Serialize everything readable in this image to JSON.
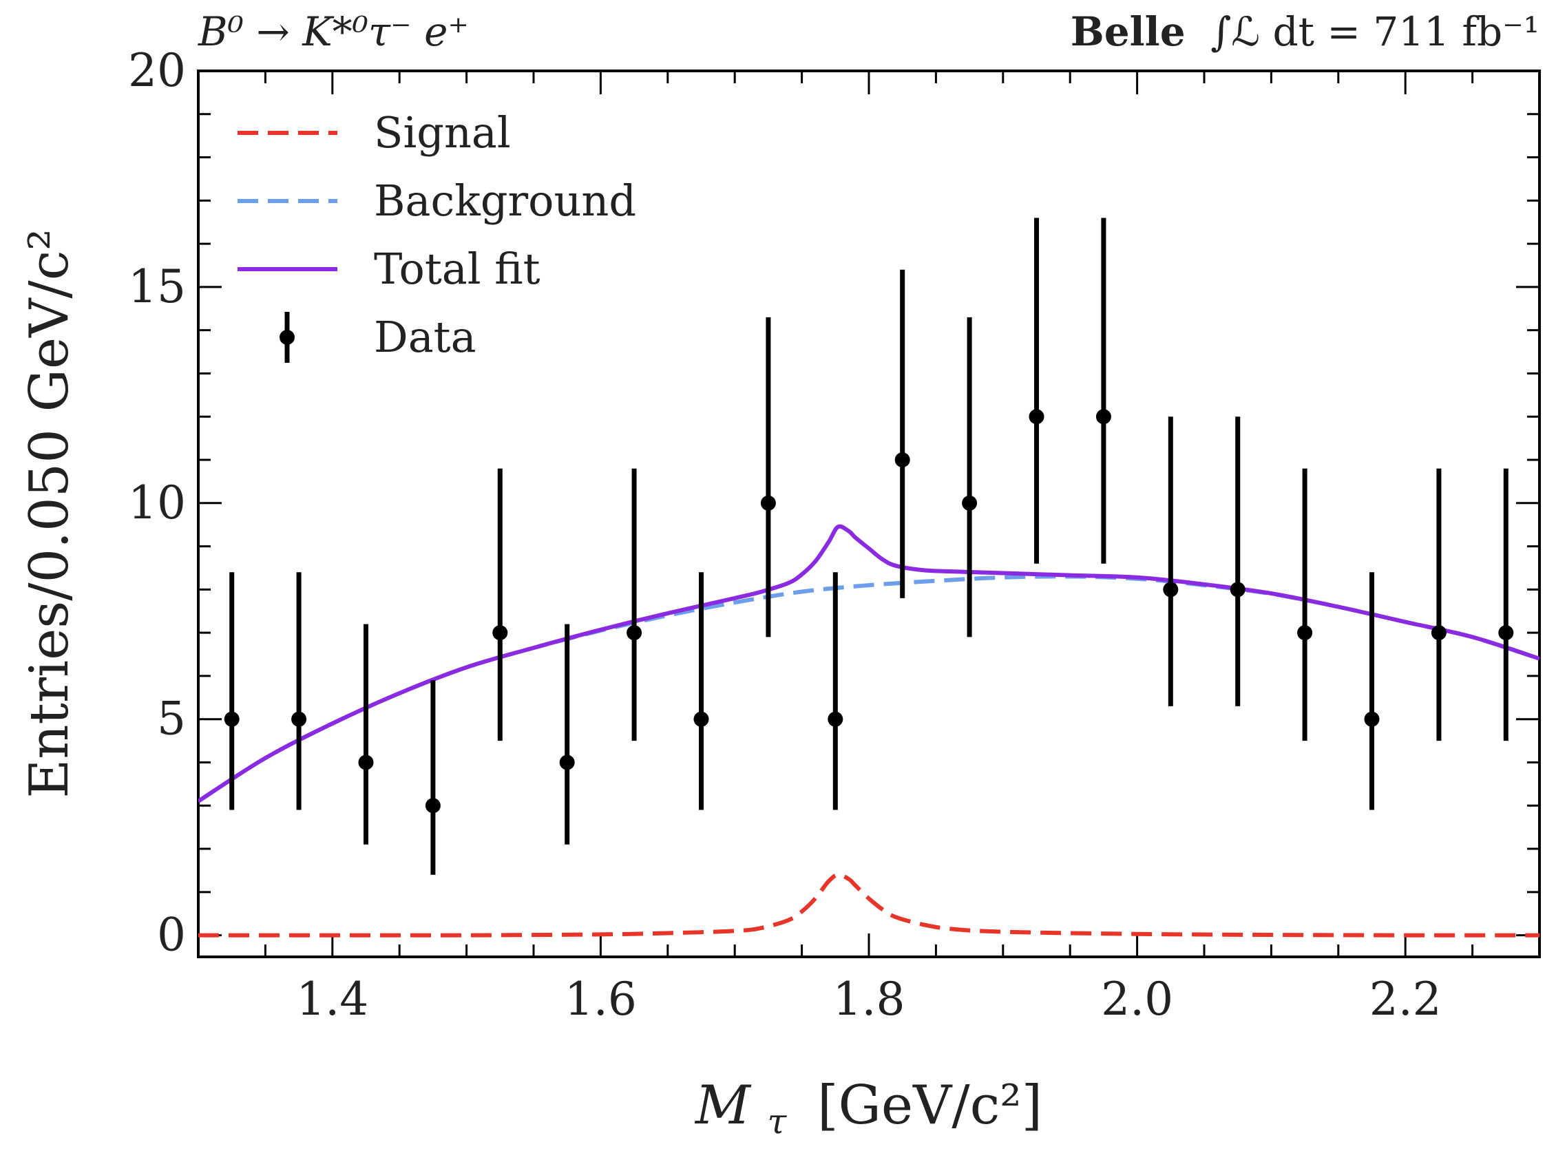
{
  "chart_data": {
    "type": "scatter",
    "title_left": "B⁰ → K*⁰τ⁻ e⁺",
    "title_right_bold": "Belle",
    "title_right": "∫ℒ dt = 711 fb⁻¹",
    "xlabel": "M",
    "xlabel_sub": "τ",
    "xlabel_unit": "[GeV/c²]",
    "ylabel": "Entries/0.050 GeV/c²",
    "xlim": [
      1.3,
      2.3
    ],
    "ylim": [
      -0.5,
      20
    ],
    "x_ticks": [
      1.4,
      1.6,
      1.8,
      2.0,
      2.2
    ],
    "x_tick_labels": [
      "1.4",
      "1.6",
      "1.8",
      "2.0",
      "2.2"
    ],
    "y_ticks": [
      0,
      5,
      10,
      15,
      20
    ],
    "y_tick_labels": [
      "0",
      "5",
      "10",
      "15",
      "20"
    ],
    "legend": {
      "position": "top-left",
      "items": [
        {
          "label": "Signal",
          "style": "dashed",
          "color": "#e8352a"
        },
        {
          "label": "Background",
          "style": "dashed",
          "color": "#6d9eeb"
        },
        {
          "label": "Total fit",
          "style": "solid",
          "color": "#8a2be2"
        },
        {
          "label": "Data",
          "style": "errorbar",
          "color": "#000000"
        }
      ]
    },
    "data_points": {
      "name": "Data",
      "x": [
        1.325,
        1.375,
        1.425,
        1.475,
        1.525,
        1.575,
        1.625,
        1.675,
        1.725,
        1.775,
        1.825,
        1.875,
        1.925,
        1.975,
        2.025,
        2.075,
        2.125,
        2.175,
        2.225,
        2.275
      ],
      "y": [
        5,
        5,
        4,
        3,
        7,
        4,
        7,
        5,
        10,
        5,
        11,
        10,
        12,
        12,
        8,
        8,
        7,
        5,
        7,
        7
      ],
      "err_low": [
        2.1,
        2.1,
        1.9,
        1.6,
        2.5,
        1.9,
        2.5,
        2.1,
        3.1,
        2.1,
        3.2,
        3.1,
        3.4,
        3.4,
        2.7,
        2.7,
        2.5,
        2.1,
        2.5,
        2.5
      ],
      "err_high": [
        3.4,
        3.4,
        3.2,
        2.9,
        3.8,
        3.2,
        3.8,
        3.4,
        4.3,
        3.4,
        4.4,
        4.3,
        4.6,
        4.6,
        4.0,
        4.0,
        3.8,
        3.4,
        3.8,
        3.8
      ]
    },
    "curves": [
      {
        "name": "Signal",
        "color": "#e8352a",
        "style": "dashed",
        "x": [
          1.3,
          1.4,
          1.5,
          1.6,
          1.65,
          1.7,
          1.72,
          1.74,
          1.75,
          1.76,
          1.77,
          1.777,
          1.785,
          1.79,
          1.8,
          1.81,
          1.82,
          1.84,
          1.86,
          1.9,
          2.0,
          2.1,
          2.2,
          2.3
        ],
        "y": [
          0,
          0,
          0,
          0.02,
          0.05,
          0.1,
          0.17,
          0.35,
          0.55,
          0.85,
          1.25,
          1.4,
          1.3,
          1.15,
          0.85,
          0.6,
          0.42,
          0.25,
          0.15,
          0.08,
          0.03,
          0.01,
          0,
          0
        ]
      },
      {
        "name": "Background",
        "color": "#6d9eeb",
        "style": "dashed",
        "x": [
          1.3,
          1.35,
          1.4,
          1.45,
          1.5,
          1.55,
          1.6,
          1.65,
          1.7,
          1.75,
          1.8,
          1.85,
          1.9,
          1.95,
          2.0,
          2.05,
          2.1,
          2.15,
          2.2,
          2.25,
          2.3
        ],
        "y": [
          3.1,
          4.1,
          4.9,
          5.6,
          6.2,
          6.65,
          7.05,
          7.4,
          7.7,
          7.95,
          8.1,
          8.2,
          8.28,
          8.3,
          8.25,
          8.1,
          7.9,
          7.6,
          7.25,
          6.9,
          6.4
        ]
      },
      {
        "name": "Total fit",
        "color": "#8a2be2",
        "style": "solid",
        "x": [
          1.3,
          1.35,
          1.4,
          1.45,
          1.5,
          1.55,
          1.6,
          1.65,
          1.7,
          1.72,
          1.74,
          1.75,
          1.76,
          1.77,
          1.777,
          1.785,
          1.79,
          1.8,
          1.81,
          1.82,
          1.84,
          1.86,
          1.9,
          1.95,
          2.0,
          2.05,
          2.1,
          2.15,
          2.2,
          2.25,
          2.3
        ],
        "y": [
          3.1,
          4.1,
          4.9,
          5.6,
          6.2,
          6.65,
          7.07,
          7.45,
          7.8,
          7.95,
          8.15,
          8.35,
          8.65,
          9.1,
          9.45,
          9.35,
          9.2,
          8.95,
          8.7,
          8.55,
          8.45,
          8.42,
          8.38,
          8.33,
          8.28,
          8.12,
          7.91,
          7.6,
          7.25,
          6.9,
          6.4
        ]
      }
    ]
  }
}
